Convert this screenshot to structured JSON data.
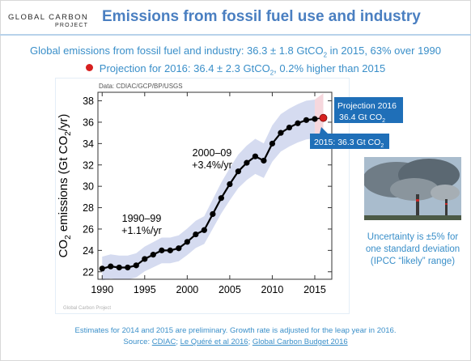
{
  "header": {
    "logo_line1": "GLOBAL CARBON",
    "logo_line2": "PROJECT",
    "title": "Emissions from fossil fuel use and industry"
  },
  "summary": {
    "line1_text": "Global emissions from fossil fuel and industry: 36.3 ± 1.8 GtCO",
    "line1_sub": "2",
    "line1_tail": " in 2015, 63% over 1990",
    "line2_text": "Projection for 2016: 36.4 ± 2.3 GtCO",
    "line2_sub": "2",
    "line2_tail": ", 0.2% higher than 2015"
  },
  "side_note": {
    "line1": "Uncertainty is ±5% for",
    "line2": "one standard deviation",
    "line3": "(IPCC “likely” range)"
  },
  "footer": {
    "line1": "Estimates for 2014 and 2015 are preliminary. Growth rate is adjusted for the leap year in 2016.",
    "source_prefix": "Source: ",
    "link1": "CDIAC",
    "link2": "Le Quéré et al 2016",
    "link3": "Global Carbon Budget 2016",
    "separator": "; "
  },
  "colors": {
    "accent": "#4a7fc1",
    "text_blue": "#3a8fc9",
    "band": "#d5dbf0",
    "projection_band": "#f6d7dd",
    "projection_dot": "#d7201f",
    "callout_bg": "#1f6fb8"
  },
  "chart_data": {
    "type": "line",
    "source_label": "Data: CDIAC/GCP/BP/USGS",
    "watermark": "Global Carbon Project",
    "ylabel_main": "CO",
    "ylabel_sub": "2",
    "ylabel_mid": " emissions (Gt CO",
    "ylabel_sub2": "2",
    "ylabel_end": "/yr)",
    "xlim": [
      1989.5,
      2017
    ],
    "ylim": [
      21.3,
      38.8
    ],
    "x_ticks": [
      1990,
      1995,
      2000,
      2005,
      2010,
      2015
    ],
    "y_ticks": [
      22,
      24,
      26,
      28,
      30,
      32,
      34,
      36,
      38
    ],
    "grid": false,
    "x": [
      1990,
      1991,
      1992,
      1993,
      1994,
      1995,
      1996,
      1997,
      1998,
      1999,
      2000,
      2001,
      2002,
      2003,
      2004,
      2005,
      2006,
      2007,
      2008,
      2009,
      2010,
      2011,
      2012,
      2013,
      2014,
      2015
    ],
    "series": [
      {
        "values": [
          22.3,
          22.5,
          22.4,
          22.4,
          22.6,
          23.2,
          23.6,
          24.0,
          24.0,
          24.2,
          24.8,
          25.5,
          25.9,
          27.4,
          28.9,
          30.2,
          31.4,
          32.2,
          32.8,
          32.4,
          34.0,
          35.0,
          35.5,
          35.9,
          36.2,
          36.3
        ]
      }
    ],
    "uncertainty_pct": 5,
    "projection": {
      "x": 2016,
      "y": 36.4,
      "low": 34.1,
      "high": 38.7,
      "label_line1": "Projection 2016",
      "label_line2": "36.4 Gt CO",
      "label_sub": "2"
    },
    "callout_2015": {
      "text": "2015: 36.3 Gt CO",
      "sub": "2"
    },
    "annotations": [
      {
        "line1": "2000–09",
        "line2": "+3.4%/yr"
      },
      {
        "line1": "1990–99",
        "line2": "+1.1%/yr"
      }
    ]
  }
}
